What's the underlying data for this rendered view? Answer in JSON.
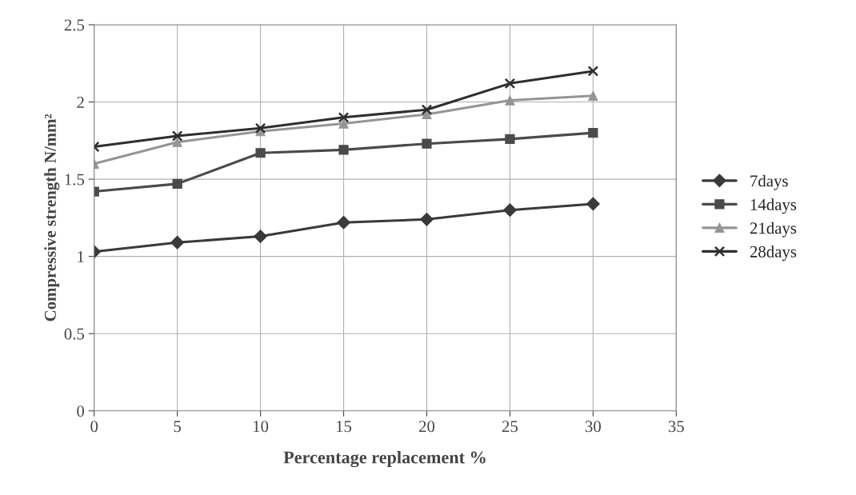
{
  "chart_data": {
    "type": "line",
    "xlabel": "Percentage replacement %",
    "ylabel": "Compressive strength N/mm²",
    "x": [
      0,
      5,
      10,
      15,
      20,
      25,
      30
    ],
    "series": [
      {
        "name": "7days",
        "color": "#3a3a3a",
        "marker": "diamond",
        "values": [
          1.03,
          1.09,
          1.13,
          1.22,
          1.24,
          1.3,
          1.34
        ]
      },
      {
        "name": "14days",
        "color": "#4a4a4a",
        "marker": "square",
        "values": [
          1.42,
          1.47,
          1.67,
          1.69,
          1.73,
          1.76,
          1.8
        ]
      },
      {
        "name": "21days",
        "color": "#959595",
        "marker": "triangle",
        "values": [
          1.6,
          1.74,
          1.81,
          1.86,
          1.92,
          2.01,
          2.04
        ]
      },
      {
        "name": "28days",
        "color": "#2e2e2e",
        "marker": "cross",
        "values": [
          1.71,
          1.78,
          1.83,
          1.9,
          1.95,
          2.12,
          2.2
        ]
      }
    ],
    "xlim": [
      0,
      35
    ],
    "xticks": [
      0,
      5,
      10,
      15,
      20,
      25,
      30,
      35
    ],
    "ylim": [
      0,
      2.5
    ],
    "yticks": [
      0,
      0.5,
      1,
      1.5,
      2,
      2.5
    ],
    "grid": true,
    "legend": "right",
    "line_style": "solid"
  }
}
